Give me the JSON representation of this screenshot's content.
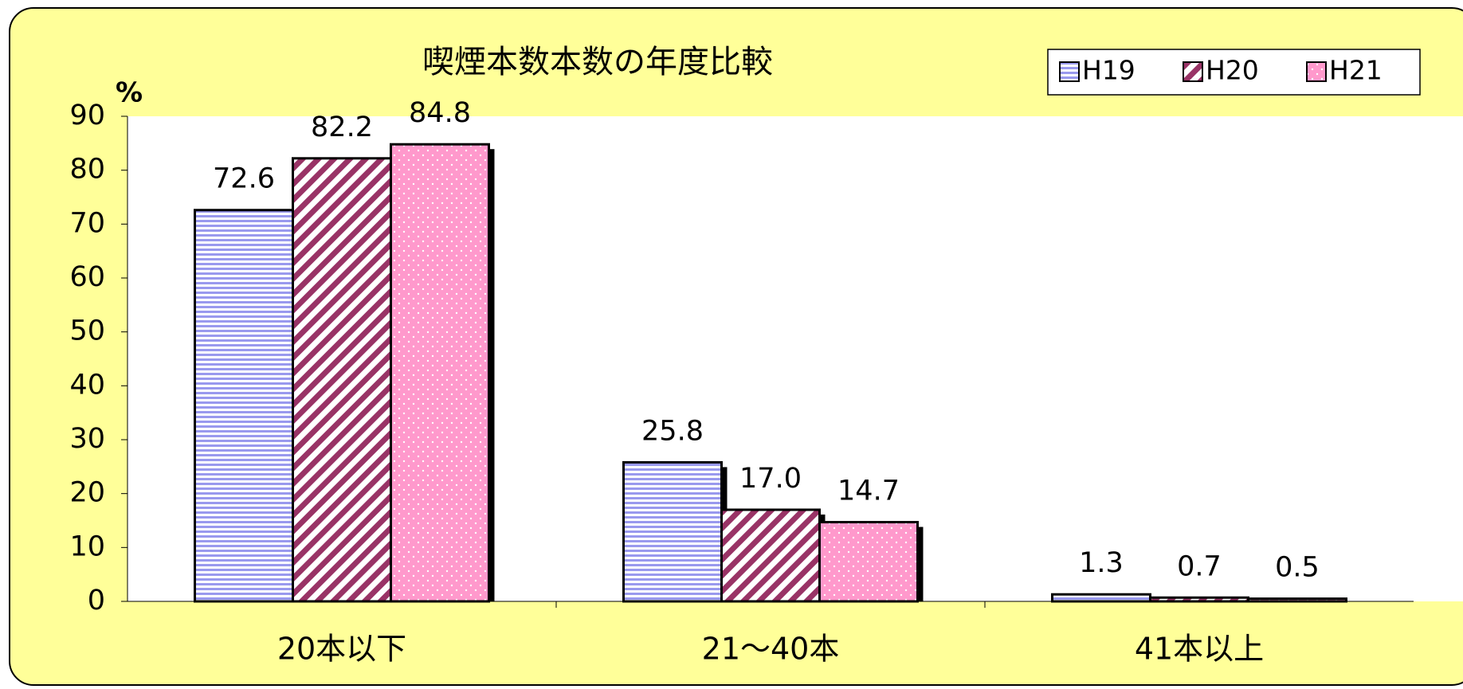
{
  "chart_data": {
    "type": "bar",
    "title": "喫煙本数本数の年度比較",
    "y_label": "%",
    "categories": [
      "20本以下",
      "21～40本",
      "41本以上"
    ],
    "series": [
      {
        "name": "H19",
        "color": "#9999ee",
        "values": [
          72.6,
          25.8,
          1.3
        ]
      },
      {
        "name": "H20",
        "color": "#993366",
        "values": [
          82.2,
          17.0,
          0.7
        ],
        "value_labels": [
          "82.2",
          "17.0",
          "0.7"
        ]
      },
      {
        "name": "H21",
        "color": "#ff99cc",
        "values": [
          84.8,
          14.7,
          0.5
        ]
      }
    ],
    "ylim": [
      0,
      90
    ],
    "yticks": [
      0,
      10,
      20,
      30,
      40,
      50,
      60,
      70,
      80,
      90
    ],
    "grid": false,
    "legend": "top-right"
  }
}
